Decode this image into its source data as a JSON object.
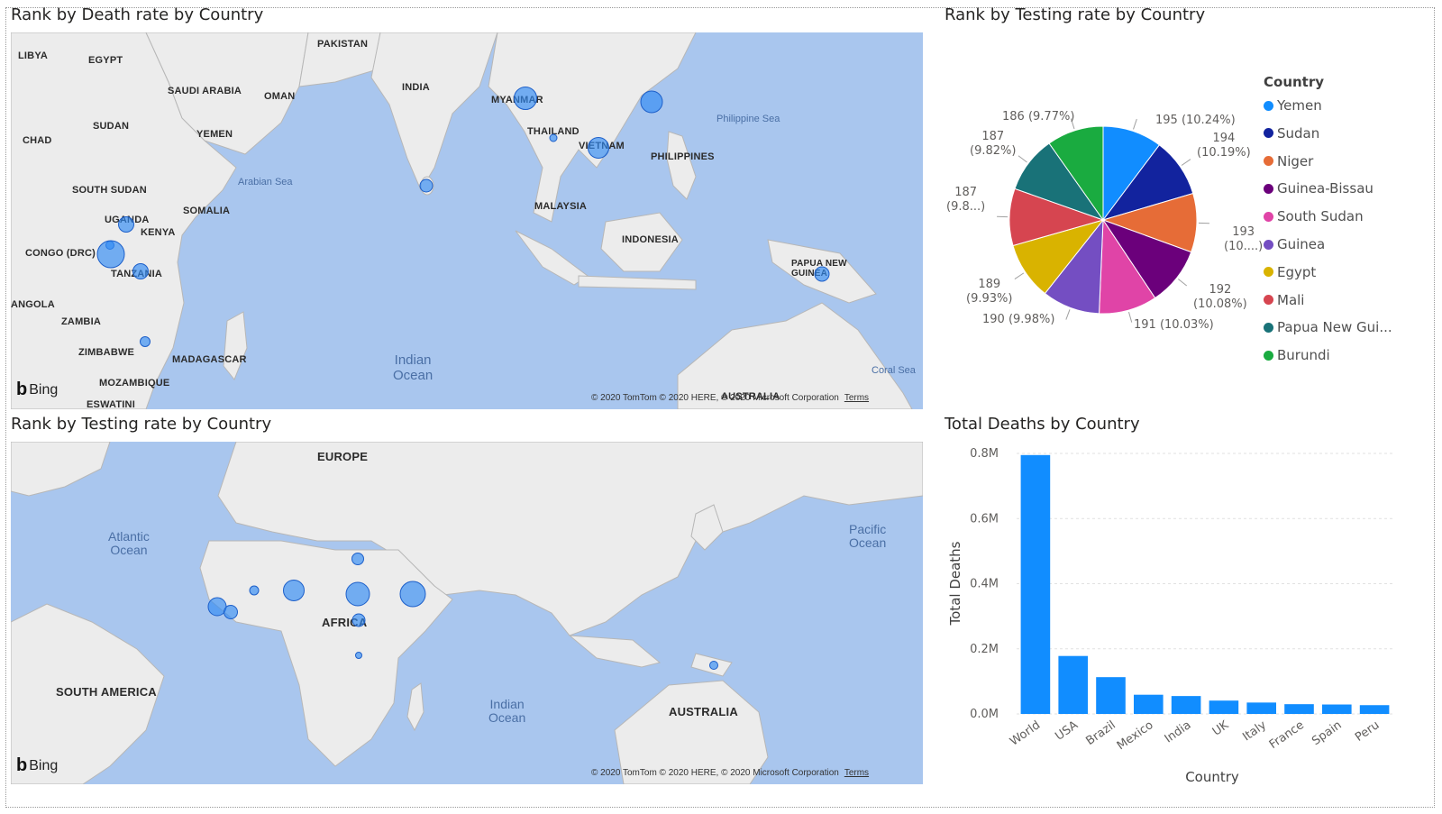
{
  "visuals": {
    "map_top": {
      "title": "Rank by Death rate by Country",
      "labels": [
        "LIBYA",
        "EGYPT",
        "PAKISTAN",
        "SAUDI ARABIA",
        "OMAN",
        "INDIA",
        "MYANMAR",
        "SUDAN",
        "CHAD",
        "YEMEN",
        "THAILAND",
        "VIETNAM",
        "PHILIPPINES",
        "SOUTH SUDAN",
        "SOMALIA",
        "MALAYSIA",
        "UGANDA",
        "KENYA",
        "CONGO (DRC)",
        "TANZANIA",
        "INDONESIA",
        "PAPUA NEW GUINEA",
        "ANGOLA",
        "ZAMBIA",
        "ZIMBABWE",
        "MADAGASCAR",
        "MOZAMBIQUE",
        "ESWATINI",
        "AUSTRALIA"
      ],
      "water_labels": [
        "Arabian Sea",
        "Philippine Sea",
        "Indian\nOcean",
        "Coral Sea"
      ],
      "bing": "Bing",
      "copyright": "© 2020 TomTom © 2020 HERE, © 2020 Microsoft Corporation",
      "terms": "Terms"
    },
    "map_bottom": {
      "title": "Rank by Testing rate by Country",
      "labels": [
        "EUROPE",
        "AFRICA",
        "SOUTH AMERICA",
        "AUSTRALIA"
      ],
      "water_labels": [
        "Atlantic\nOcean",
        "Pacific\nOcean",
        "Indian\nOcean"
      ],
      "bing": "Bing",
      "copyright": "© 2020 TomTom © 2020 HERE, © 2020 Microsoft Corporation",
      "terms": "Terms"
    },
    "pie": {
      "title": "Rank by Testing rate by Country",
      "legend_title": "Country",
      "legend": [
        "Yemen",
        "Sudan",
        "Niger",
        "Guinea-Bissau",
        "South Sudan",
        "Guinea",
        "Egypt",
        "Mali",
        "Papua New Gui...",
        "Burundi"
      ],
      "slice_labels": [
        "195 (10.24%)",
        "194\n(10.19%)",
        "193\n(10....)",
        "192\n(10.08%)",
        "191 (10.03%)",
        "190 (9.98%)",
        "189\n(9.93%)",
        "187\n(9.8...)",
        "187\n(9.82%)",
        "186 (9.77%)"
      ]
    },
    "bar": {
      "title": "Total Deaths by Country",
      "xlabel": "Country",
      "ylabel": "Total Deaths",
      "yticks": [
        "0.8M",
        "0.6M",
        "0.4M",
        "0.2M",
        "0.0M"
      ]
    }
  },
  "colors": {
    "series": [
      "#118DFF",
      "#12239E",
      "#E66C37",
      "#6B007B",
      "#E044A7",
      "#744EC2",
      "#D9B300",
      "#D64550",
      "#197278",
      "#1AAB40"
    ],
    "bubble": "#2F8BF5",
    "water": "#A9C6EE",
    "land": "#ECECEC"
  },
  "chart_data": [
    {
      "type": "pie",
      "title": "Rank by Testing rate by Country",
      "legend_title": "Country",
      "legend_position": "right",
      "categories": [
        "Yemen",
        "Sudan",
        "Niger",
        "Guinea-Bissau",
        "South Sudan",
        "Guinea",
        "Egypt",
        "Mali",
        "Papua New Gui...",
        "Burundi"
      ],
      "values": [
        195,
        194,
        193,
        192,
        191,
        190,
        189,
        187,
        187,
        186
      ],
      "percents": [
        10.24,
        10.19,
        10.14,
        10.08,
        10.03,
        9.98,
        9.93,
        9.82,
        9.82,
        9.77
      ]
    },
    {
      "type": "bar",
      "title": "Total Deaths by Country",
      "xlabel": "Country",
      "ylabel": "Total Deaths",
      "categories": [
        "World",
        "USA",
        "Brazil",
        "Mexico",
        "India",
        "UK",
        "Italy",
        "France",
        "Spain",
        "Peru"
      ],
      "values": [
        795000,
        178000,
        113000,
        59000,
        55000,
        41000,
        35000,
        30000,
        29000,
        27000
      ],
      "ylim": [
        0,
        800000
      ],
      "grid": true
    }
  ]
}
